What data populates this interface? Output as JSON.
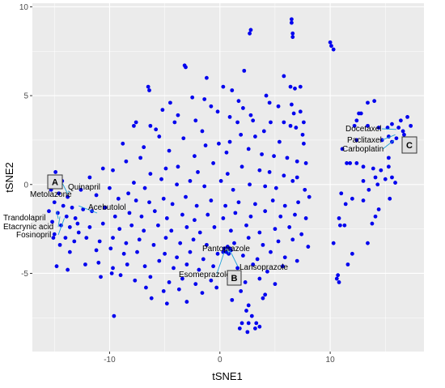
{
  "chart_data": {
    "type": "scatter",
    "title": "",
    "xlabel": "tSNE1",
    "ylabel": "tSNE2",
    "xlim": [
      -17,
      18.5
    ],
    "ylim": [
      -9.4,
      10.2
    ],
    "xticks": [
      -10,
      0,
      10
    ],
    "yticks": [
      -5,
      0,
      5,
      10
    ],
    "grid": true,
    "legend": "none",
    "colors": {
      "points": "#0000ee",
      "panel": "#ebebeb",
      "grid": "#ffffff",
      "leader": "#1f9fd6"
    },
    "points": [
      [
        6.5,
        9.3
      ],
      [
        6.5,
        9.1
      ],
      [
        10,
        8.0
      ],
      [
        10.1,
        7.8
      ],
      [
        10.3,
        7.6
      ],
      [
        6.6,
        8.5
      ],
      [
        6.6,
        8.3
      ],
      [
        2.8,
        8.7
      ],
      [
        2.7,
        8.5
      ],
      [
        -3.2,
        6.7
      ],
      [
        -3.1,
        6.6
      ],
      [
        -1.2,
        6.0
      ],
      [
        1.1,
        5.3
      ],
      [
        2.2,
        6.4
      ],
      [
        5.8,
        6.1
      ],
      [
        -6.5,
        5.5
      ],
      [
        -6.4,
        5.3
      ],
      [
        4.2,
        5.0
      ],
      [
        6.4,
        5.5
      ],
      [
        6.8,
        5.4
      ],
      [
        7.3,
        5.5
      ],
      [
        4.5,
        4.6
      ],
      [
        5.3,
        4.4
      ],
      [
        0.3,
        5.5
      ],
      [
        -2.5,
        4.9
      ],
      [
        -1.4,
        4.8
      ],
      [
        -0.8,
        4.4
      ],
      [
        1.7,
        4.7
      ],
      [
        2.1,
        4.3
      ],
      [
        6.5,
        4.5
      ],
      [
        6.7,
        4.0
      ],
      [
        7.3,
        4.1
      ],
      [
        -4.5,
        4.6
      ],
      [
        -5.2,
        4.2
      ],
      [
        -7.6,
        3.5
      ],
      [
        -7.8,
        3.3
      ],
      [
        -3.8,
        3.9
      ],
      [
        -6.3,
        3.3
      ],
      [
        -5.8,
        3.1
      ],
      [
        -4.1,
        3.5
      ],
      [
        -2.2,
        3.6
      ],
      [
        -1.6,
        3.0
      ],
      [
        -0.2,
        4.1
      ],
      [
        0.9,
        3.8
      ],
      [
        1.6,
        3.5
      ],
      [
        2.8,
        3.9
      ],
      [
        3.0,
        3.6
      ],
      [
        4.6,
        3.5
      ],
      [
        5.8,
        3.5
      ],
      [
        6.4,
        3.3
      ],
      [
        6.9,
        3.2
      ],
      [
        7.6,
        3.5
      ],
      [
        -5.5,
        2.7
      ],
      [
        -3.3,
        2.6
      ],
      [
        -1.3,
        2.2
      ],
      [
        -0.1,
        2.3
      ],
      [
        0.9,
        2.4
      ],
      [
        1.9,
        2.8
      ],
      [
        3.2,
        2.7
      ],
      [
        4.0,
        3.0
      ],
      [
        5.4,
        2.4
      ],
      [
        7.5,
        2.8
      ],
      [
        -8.8,
        2.3
      ],
      [
        -6.9,
        2.1
      ],
      [
        -4.6,
        1.9
      ],
      [
        -2.3,
        1.6
      ],
      [
        0.6,
        1.8
      ],
      [
        2.6,
        2.0
      ],
      [
        3.8,
        1.7
      ],
      [
        4.9,
        1.6
      ],
      [
        6.1,
        1.5
      ],
      [
        7.0,
        1.3
      ],
      [
        7.6,
        2.3
      ],
      [
        -10.6,
        0.9
      ],
      [
        -8.5,
        1.3
      ],
      [
        -7.2,
        1.5
      ],
      [
        -6.3,
        0.6
      ],
      [
        -4.9,
        0.9
      ],
      [
        -3.8,
        1.0
      ],
      [
        -2.0,
        0.7
      ],
      [
        -0.6,
        1.2
      ],
      [
        0.7,
        0.6
      ],
      [
        2.0,
        1.0
      ],
      [
        3.6,
        0.8
      ],
      [
        4.5,
        0.7
      ],
      [
        5.8,
        0.5
      ],
      [
        7.0,
        0.4
      ],
      [
        7.8,
        1.2
      ],
      [
        -11.8,
        0.4
      ],
      [
        -9.7,
        0.8
      ],
      [
        -7.8,
        0.1
      ],
      [
        -6.8,
        -0.2
      ],
      [
        -5.3,
        0.3
      ],
      [
        -3.9,
        0.0
      ],
      [
        -2.7,
        0.2
      ],
      [
        -1.4,
        -0.1
      ],
      [
        0.1,
        0.2
      ],
      [
        1.2,
        -0.3
      ],
      [
        2.7,
        0.0
      ],
      [
        4.1,
        -0.1
      ],
      [
        5.1,
        -0.2
      ],
      [
        6.6,
        0.2
      ],
      [
        7.7,
        -0.3
      ],
      [
        -12.6,
        -0.3
      ],
      [
        -11.2,
        -0.6
      ],
      [
        -10.0,
        -0.2
      ],
      [
        -9.2,
        -0.8
      ],
      [
        -8.3,
        -0.5
      ],
      [
        -7.6,
        -0.9
      ],
      [
        -6.4,
        -1.0
      ],
      [
        -5.1,
        -0.8
      ],
      [
        -4.3,
        -1.1
      ],
      [
        -3.1,
        -0.7
      ],
      [
        -2.1,
        -1.2
      ],
      [
        -0.8,
        -0.9
      ],
      [
        0.5,
        -1.2
      ],
      [
        1.7,
        -1.0
      ],
      [
        3.2,
        -1.1
      ],
      [
        4.8,
        -0.9
      ],
      [
        5.9,
        -1.2
      ],
      [
        7.1,
        -1.0
      ],
      [
        8.1,
        -0.7
      ],
      [
        -12.4,
        -1.4
      ],
      [
        -11.6,
        -1.5
      ],
      [
        -10.4,
        -1.3
      ],
      [
        -9.5,
        -1.8
      ],
      [
        -8.2,
        -1.6
      ],
      [
        -7.1,
        -1.8
      ],
      [
        -5.9,
        -1.5
      ],
      [
        -4.8,
        -1.9
      ],
      [
        -3.4,
        -1.7
      ],
      [
        -2.3,
        -2.0
      ],
      [
        -1.1,
        -1.7
      ],
      [
        0.3,
        -1.9
      ],
      [
        1.4,
        -1.6
      ],
      [
        2.8,
        -1.8
      ],
      [
        4.1,
        -1.5
      ],
      [
        5.5,
        -1.8
      ],
      [
        6.8,
        -1.7
      ],
      [
        7.8,
        -1.9
      ],
      [
        -12.9,
        -2.2
      ],
      [
        -11.8,
        -2.4
      ],
      [
        -10.6,
        -2.2
      ],
      [
        -9.1,
        -2.5
      ],
      [
        -8.0,
        -2.3
      ],
      [
        -6.9,
        -2.6
      ],
      [
        -5.6,
        -2.3
      ],
      [
        -4.4,
        -2.6
      ],
      [
        -3.0,
        -2.4
      ],
      [
        -1.8,
        -2.7
      ],
      [
        -0.5,
        -2.4
      ],
      [
        1.0,
        -2.6
      ],
      [
        2.4,
        -2.3
      ],
      [
        3.6,
        -2.7
      ],
      [
        5.0,
        -2.5
      ],
      [
        6.3,
        -2.4
      ],
      [
        7.4,
        -2.8
      ],
      [
        -12.1,
        -3.0
      ],
      [
        -10.9,
        -3.2
      ],
      [
        -9.7,
        -3.0
      ],
      [
        -8.5,
        -3.3
      ],
      [
        -7.3,
        -3.1
      ],
      [
        -6.0,
        -3.4
      ],
      [
        -4.9,
        -3.0
      ],
      [
        -3.6,
        -3.3
      ],
      [
        -2.4,
        -3.1
      ],
      [
        -1.2,
        -3.4
      ],
      [
        1.3,
        -3.3
      ],
      [
        2.6,
        -3.0
      ],
      [
        3.9,
        -3.4
      ],
      [
        5.3,
        -3.2
      ],
      [
        6.6,
        -3.1
      ],
      [
        8.0,
        -3.5
      ],
      [
        -11.2,
        -3.7
      ],
      [
        -9.9,
        -3.6
      ],
      [
        -8.7,
        -3.9
      ],
      [
        -7.5,
        -3.8
      ],
      [
        -5.0,
        -3.9
      ],
      [
        -3.9,
        -4.1
      ],
      [
        -2.7,
        -3.8
      ],
      [
        -1.5,
        -4.2
      ],
      [
        -0.2,
        -3.9
      ],
      [
        2.1,
        -4.0
      ],
      [
        3.4,
        -4.2
      ],
      [
        4.6,
        -3.8
      ],
      [
        5.9,
        -4.1
      ],
      [
        7.0,
        -4.3
      ],
      [
        -12.2,
        -4.5
      ],
      [
        -11.0,
        -4.4
      ],
      [
        -9.7,
        -4.7
      ],
      [
        -8.4,
        -4.5
      ],
      [
        -6.8,
        -4.6
      ],
      [
        -5.5,
        -4.3
      ],
      [
        -4.2,
        -4.7
      ],
      [
        -3.0,
        -4.5
      ],
      [
        -1.9,
        -4.8
      ],
      [
        -0.6,
        -4.6
      ],
      [
        1.6,
        -4.7
      ],
      [
        3.0,
        -4.5
      ],
      [
        4.3,
        -4.9
      ],
      [
        5.7,
        -4.6
      ],
      [
        -10.8,
        -5.2
      ],
      [
        -9.0,
        -5.1
      ],
      [
        -7.7,
        -5.4
      ],
      [
        -6.3,
        -5.2
      ],
      [
        -4.6,
        -5.5
      ],
      [
        -3.4,
        -5.3
      ],
      [
        -2.2,
        -5.6
      ],
      [
        -0.8,
        -5.4
      ],
      [
        0.8,
        -5.3
      ],
      [
        2.3,
        -5.5
      ],
      [
        3.6,
        -5.3
      ],
      [
        5.0,
        -5.6
      ],
      [
        -9.8,
        -5.0
      ],
      [
        -6.7,
        -5.8
      ],
      [
        -5.1,
        -6.0
      ],
      [
        -3.7,
        -5.9
      ],
      [
        -1.6,
        -6.1
      ],
      [
        -0.3,
        -5.8
      ],
      [
        1.9,
        -6.0
      ],
      [
        4.1,
        -6.2
      ],
      [
        -6.2,
        -6.4
      ],
      [
        -4.8,
        -6.7
      ],
      [
        -3.0,
        -6.6
      ],
      [
        1.1,
        -6.5
      ],
      [
        2.6,
        -6.8
      ],
      [
        3.9,
        -6.4
      ],
      [
        2.4,
        -7.1
      ],
      [
        2.9,
        -7.4
      ],
      [
        2.0,
        -7.8
      ],
      [
        2.6,
        -7.8
      ],
      [
        3.3,
        -7.8
      ],
      [
        1.8,
        -8.1
      ],
      [
        2.5,
        -8.3
      ],
      [
        3.2,
        -8.1
      ],
      [
        3.6,
        -8.0
      ],
      [
        -9.6,
        -7.4
      ],
      [
        -14.9,
        0.7
      ],
      [
        -14.3,
        0.2
      ],
      [
        -15.3,
        -0.3
      ],
      [
        -14.6,
        -0.5
      ],
      [
        -13.8,
        -0.7
      ],
      [
        -15.0,
        -1.0
      ],
      [
        -14.2,
        -1.2
      ],
      [
        -13.4,
        -1.3
      ],
      [
        -15.5,
        -1.5
      ],
      [
        -14.7,
        -1.6
      ],
      [
        -13.9,
        -1.8
      ],
      [
        -13.1,
        -1.9
      ],
      [
        -15.2,
        -2.1
      ],
      [
        -14.4,
        -2.3
      ],
      [
        -13.6,
        -2.4
      ],
      [
        -12.8,
        -2.7
      ],
      [
        -15.0,
        -2.8
      ],
      [
        -14.0,
        -3.0
      ],
      [
        -13.2,
        -3.2
      ],
      [
        -14.5,
        -3.4
      ],
      [
        -13.6,
        -3.8
      ],
      [
        -15.1,
        -3.0
      ],
      [
        -14.8,
        -4.6
      ],
      [
        -13.8,
        -4.8
      ],
      [
        0.4,
        -3.6
      ],
      [
        0.7,
        -3.5
      ],
      [
        0.9,
        -3.6
      ],
      [
        0.6,
        -3.8
      ],
      [
        1.0,
        -3.7
      ],
      [
        0.3,
        -3.8
      ],
      [
        0.8,
        -3.9
      ],
      [
        13.4,
        4.6
      ],
      [
        14.0,
        4.7
      ],
      [
        12.6,
        4.0
      ],
      [
        12.8,
        4.0
      ],
      [
        12.2,
        3.3
      ],
      [
        14.4,
        3.2
      ],
      [
        15.2,
        3.2
      ],
      [
        15.6,
        3.4
      ],
      [
        16.4,
        3.6
      ],
      [
        17.0,
        3.8
      ],
      [
        17.3,
        3.3
      ],
      [
        16.2,
        3.2
      ],
      [
        16.6,
        3.0
      ],
      [
        15.3,
        2.7
      ],
      [
        16.0,
        2.6
      ],
      [
        16.7,
        2.8
      ],
      [
        15.6,
        2.4
      ],
      [
        12.4,
        3.6
      ],
      [
        13.4,
        3.3
      ],
      [
        14.7,
        2.5
      ],
      [
        11.1,
        2.0
      ],
      [
        11.8,
        1.2
      ],
      [
        12.4,
        1.2
      ],
      [
        13.0,
        1.0
      ],
      [
        13.9,
        0.9
      ],
      [
        14.6,
        0.8
      ],
      [
        15.3,
        1.0
      ],
      [
        14.3,
        0.0
      ],
      [
        15.0,
        0.3
      ],
      [
        15.6,
        0.4
      ],
      [
        15.9,
        0.1
      ],
      [
        14.1,
        0.4
      ],
      [
        13.0,
        0.2
      ],
      [
        13.5,
        -0.3
      ],
      [
        15.4,
        -0.8
      ],
      [
        14.4,
        -1.4
      ],
      [
        11.0,
        -0.5
      ],
      [
        12.0,
        -0.8
      ],
      [
        13.0,
        -0.9
      ],
      [
        11.4,
        -1.1
      ],
      [
        10.8,
        -1.9
      ],
      [
        11.3,
        -2.3
      ],
      [
        10.9,
        -2.3
      ],
      [
        14.1,
        -1.8
      ],
      [
        13.8,
        -2.2
      ],
      [
        13.4,
        -3.3
      ],
      [
        12.0,
        -3.9
      ],
      [
        11.6,
        -4.5
      ],
      [
        10.7,
        -5.1
      ],
      [
        10.8,
        -5.5
      ],
      [
        10.6,
        -5.3
      ],
      [
        10.3,
        -3.3
      ],
      [
        15.3,
        1.5
      ],
      [
        11.5,
        1.2
      ],
      [
        12.4,
        2.5
      ]
    ],
    "annotations": [
      {
        "label": "Metolazone",
        "point": [
          -14.3,
          0.1
        ]
      },
      {
        "label": "Quinapril",
        "point": [
          -13.6,
          -0.4
        ]
      },
      {
        "label": "Acebutolol",
        "point": [
          -12.8,
          -1.2
        ]
      },
      {
        "label": "Trandolapril",
        "point": [
          -14.8,
          -1.5
        ]
      },
      {
        "label": "Etacrynic acid",
        "point": [
          -14.5,
          -1.8
        ]
      },
      {
        "label": "Fosinopril",
        "point": [
          -14.1,
          -1.9
        ]
      },
      {
        "label": "Pantoprazole",
        "point": [
          0.6,
          -3.6
        ]
      },
      {
        "label": "Esomeprazole",
        "point": [
          0.4,
          -3.8
        ]
      },
      {
        "label": "Lansoprazole",
        "point": [
          0.9,
          -3.7
        ]
      },
      {
        "label": "Docetaxel",
        "point": [
          16.0,
          3.1
        ]
      },
      {
        "label": "Paclitaxel",
        "point": [
          15.9,
          2.8
        ]
      },
      {
        "label": "Carboplatin",
        "point": [
          15.8,
          2.5
        ]
      }
    ],
    "boxes": [
      "A",
      "B",
      "C"
    ]
  }
}
